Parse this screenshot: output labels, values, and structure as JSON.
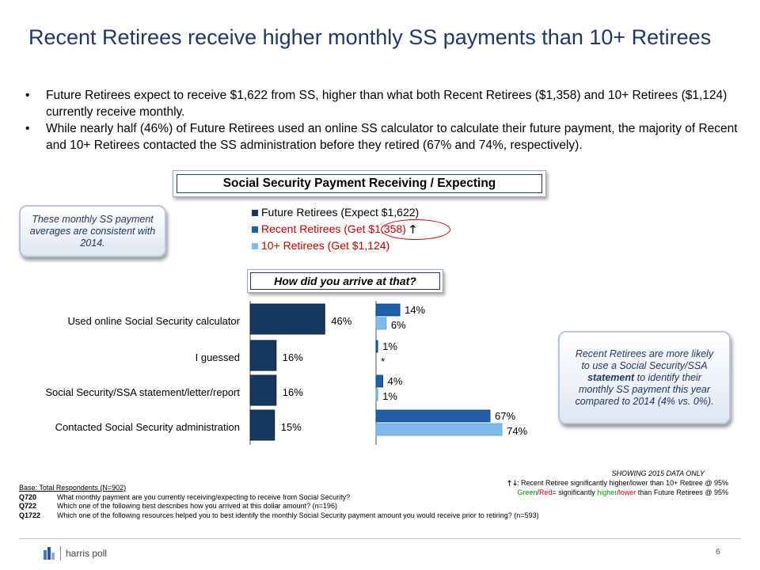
{
  "title": "Recent Retirees receive higher monthly SS payments than 10+ Retirees",
  "bullets": [
    "Future Retirees expect to receive $1,622 from SS, higher than what both Recent Retirees ($1,358) and 10+ Retirees ($1,124) currently receive monthly.",
    "While nearly half (46%) of Future Retirees used an online SS calculator to calculate their future payment, the majority of Recent and 10+ Retirees contacted the SS administration before they retired (67% and 74%, respectively)."
  ],
  "bullet_symbol": "•",
  "box_title": "Social Security Payment Receiving / Expecting",
  "note_left": "These monthly SS payment averages are consistent with 2014.",
  "note_right": {
    "before": "Recent Retirees are more likely to use a Social Security/SSA ",
    "bold": "statement",
    "after": " to identify their monthly SS payment this year compared to 2014 (4% vs. 0%)."
  },
  "legend": [
    {
      "label": "Future Retirees (Expect $1,622)",
      "color": "#17375e",
      "text_color": "#000000"
    },
    {
      "label": "Recent Retirees (Get $1,358)",
      "color": "#1f5fa8",
      "text_color": "#c00000",
      "arrow": "up-arrow-icon",
      "highlight": "#c00000"
    },
    {
      "label": "10+ Retirees (Get $1,124)",
      "color": "#7fbbea",
      "text_color": "#c00000"
    }
  ],
  "subquestion": "How did you arrive at that?",
  "chart_data": {
    "type": "bar",
    "orientation": "horizontal",
    "categories": [
      "Used online Social Security calculator",
      "I guessed",
      "Social Security/SSA statement/letter/report",
      "Contacted Social Security administration"
    ],
    "series": [
      {
        "name": "Future Retirees (Expect $1,622)",
        "values": [
          46,
          16,
          16,
          15
        ],
        "labels": [
          "46%",
          "16%",
          "16%",
          "15%"
        ],
        "color": "#17375e"
      },
      {
        "name": "Recent Retirees (Get $1,358)",
        "values": [
          14,
          1,
          4,
          67
        ],
        "labels": [
          "14%",
          "1%",
          "4%",
          "67%"
        ],
        "color": "#1f5fa8"
      },
      {
        "name": "10+ Retirees (Get $1,124)",
        "values": [
          6,
          0,
          1,
          74
        ],
        "labels": [
          "6%",
          "*",
          "1%",
          "74%"
        ],
        "color": "#7fbbea"
      }
    ],
    "legend_position": "top",
    "grid": false
  },
  "showing": "SHOWING 2015 DATA ONLY",
  "sig_line1": ": Recent Retiree significantly higher/lower than 10+ Retiree @ 95%",
  "sig_line2": {
    "green": "Green",
    "slash": "/",
    "red": "Red",
    "rest": "= significantly ",
    "higher": "higher",
    "mid": "/",
    "lower": "lower",
    "end": " than Future Retirees @ 95%"
  },
  "footer": {
    "base": "Base: Total Respondents (N=902)",
    "questions": [
      {
        "id": "Q720",
        "text": "What monthly payment are you currently receiving/expecting to receive from Social Security?"
      },
      {
        "id": "Q722",
        "text": "Which one of the following best describes how you arrived at this dollar amount? (n=196)"
      },
      {
        "id": "Q1722",
        "text": "Which one of the following resources helped you to best identify the monthly Social Security payment amount you would receive prior to retiring? (n=593)"
      }
    ]
  },
  "logo_text": "harris poll",
  "page_number": "6"
}
